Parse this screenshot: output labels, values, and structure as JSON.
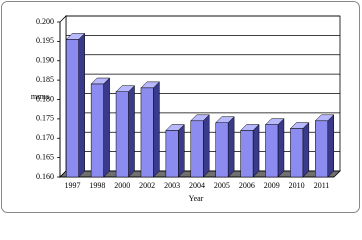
{
  "chart_data": {
    "type": "bar3d",
    "x_label": "Year",
    "y_label": "mrms",
    "categories": [
      "1997",
      "1998",
      "2000",
      "2002",
      "2003",
      "2004",
      "2005",
      "2006",
      "2009",
      "2010",
      "2011"
    ],
    "values": [
      0.1955,
      0.184,
      0.182,
      0.183,
      0.172,
      0.1745,
      0.174,
      0.172,
      0.1735,
      0.1725,
      0.1745
    ],
    "color": "#8c8cf0",
    "ylim": [
      0.16,
      0.2
    ],
    "yticks": [
      {
        "value": 0.16,
        "label": "0.160"
      },
      0.165,
      {
        "value": 0.17,
        "label": "0.170"
      },
      0.175,
      {
        "value": 0.18,
        "label": "0.180"
      },
      0.185,
      {
        "value": 0.19,
        "label": "0.190"
      },
      0.195,
      {
        "value": 0.2,
        "label": "0.200"
      }
    ],
    "grid": true
  }
}
